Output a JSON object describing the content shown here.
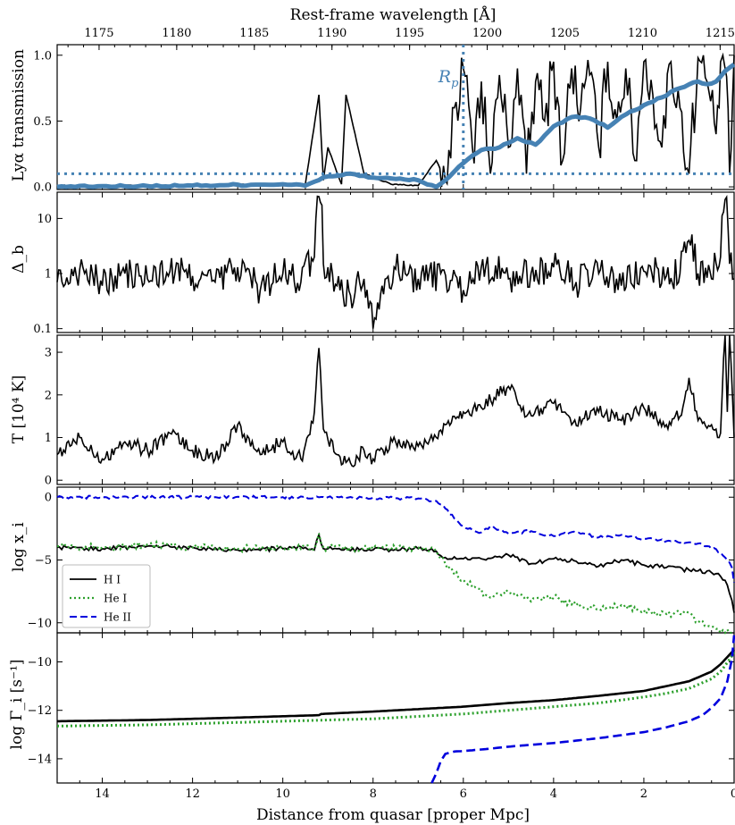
{
  "chart_data": [
    {
      "type": "line",
      "panel": "transmission",
      "xlabel_top": "Rest-frame wavelength [Å]",
      "ylabel": "Lyα transmission",
      "ylim": [
        -0.02,
        1.08
      ],
      "yticks": [
        "0.0",
        "0.5",
        "1.0"
      ],
      "top_ticks": [
        "1175",
        "1180",
        "1185",
        "1190",
        "1195",
        "1200",
        "1205",
        "1210",
        "1215"
      ],
      "annotation": "R_p",
      "annotation_x": 6.0,
      "threshold_y": 0.1,
      "colors": {
        "raw": "#000000",
        "smoothed": "#4682b4",
        "guide": "#4682b4"
      },
      "series": [
        {
          "role": "raw",
          "x": [
            15,
            13,
            12,
            11,
            10,
            9.5,
            9.2,
            9.1,
            9.0,
            8.7,
            8.6,
            8.2,
            7.6,
            7.0,
            6.6,
            6.4,
            6.2,
            6.0,
            5.8,
            5.6,
            5.4,
            5.2,
            5.0,
            4.8,
            4.6,
            4.4,
            4.2,
            4.0,
            3.8,
            3.6,
            3.4,
            3.2,
            3.0,
            2.8,
            2.6,
            2.4,
            2.2,
            2.0,
            1.8,
            1.6,
            1.4,
            1.2,
            1.0,
            0.8,
            0.6,
            0.4,
            0.3,
            0.2,
            0.1,
            0.0
          ],
          "values": [
            0.01,
            0.01,
            0.01,
            0.02,
            0.02,
            0.02,
            0.7,
            0.05,
            0.3,
            0.02,
            0.7,
            0.1,
            0.02,
            0.01,
            0.2,
            0.05,
            0.6,
            0.9,
            0.3,
            0.8,
            0.1,
            0.85,
            0.3,
            0.9,
            0.1,
            0.8,
            0.5,
            0.95,
            0.2,
            0.9,
            0.6,
            0.85,
            0.3,
            0.95,
            0.5,
            0.9,
            0.2,
            0.95,
            0.7,
            0.3,
            0.95,
            0.6,
            0.1,
            0.98,
            0.8,
            0.4,
            0.95,
            0.9,
            0.1,
            1.0
          ]
        },
        {
          "role": "smoothed",
          "x": [
            15,
            12,
            10,
            9.5,
            9.0,
            8.5,
            8.0,
            7.5,
            7.0,
            6.6,
            6.3,
            6.0,
            5.6,
            5.2,
            4.8,
            4.4,
            4.0,
            3.6,
            3.2,
            2.8,
            2.4,
            2.0,
            1.6,
            1.2,
            0.8,
            0.6,
            0.4,
            0.2,
            0.0
          ],
          "values": [
            0.0,
            0.01,
            0.02,
            0.01,
            0.08,
            0.1,
            0.07,
            0.06,
            0.05,
            0.0,
            0.08,
            0.18,
            0.28,
            0.3,
            0.37,
            0.32,
            0.46,
            0.53,
            0.52,
            0.45,
            0.55,
            0.62,
            0.68,
            0.75,
            0.8,
            0.78,
            0.8,
            0.88,
            0.93
          ]
        }
      ]
    },
    {
      "type": "line",
      "panel": "overdensity",
      "ylabel": "Δ_b",
      "scale": "log",
      "ylim": [
        0.085,
        30
      ],
      "yticks": [
        "0.1",
        "1",
        "10"
      ],
      "series": [
        {
          "x": [
            15,
            14.5,
            14,
            13.5,
            13,
            12.5,
            12,
            11.5,
            11,
            10.5,
            10,
            9.6,
            9.3,
            9.2,
            9.1,
            8.8,
            8.5,
            8.2,
            8.0,
            7.8,
            7.5,
            7.0,
            6.5,
            6.0,
            5.5,
            5.0,
            4.5,
            4.0,
            3.5,
            3.0,
            2.5,
            2.0,
            1.5,
            1.2,
            1.0,
            0.8,
            0.5,
            0.3,
            0.2,
            0.1,
            0.0
          ],
          "values": [
            0.7,
            1.2,
            0.6,
            1.0,
            0.8,
            1.1,
            0.9,
            0.7,
            1.3,
            0.5,
            1.0,
            0.7,
            2.0,
            25,
            1.5,
            0.6,
            0.4,
            0.8,
            0.1,
            0.6,
            1.2,
            0.8,
            1.0,
            0.5,
            1.4,
            0.8,
            1.0,
            1.3,
            0.7,
            1.0,
            0.6,
            1.1,
            0.9,
            1.0,
            4.0,
            1.0,
            0.8,
            2.0,
            22,
            1.5,
            0.8
          ]
        }
      ]
    },
    {
      "type": "line",
      "panel": "temperature",
      "ylabel": "T [10⁴ K]",
      "ylim": [
        -0.1,
        3.4
      ],
      "yticks": [
        "0",
        "1",
        "2",
        "3"
      ],
      "series": [
        {
          "x": [
            15,
            14.5,
            14,
            13.5,
            13,
            12.5,
            12,
            11.5,
            11,
            10.5,
            10,
            9.6,
            9.3,
            9.2,
            9.1,
            8.8,
            8.5,
            8.2,
            8.0,
            7.5,
            7.0,
            6.6,
            6.4,
            6.2,
            6.0,
            5.6,
            5.0,
            4.6,
            4.0,
            3.6,
            3.0,
            2.5,
            2.0,
            1.5,
            1.2,
            1.0,
            0.8,
            0.5,
            0.3,
            0.2,
            0.15,
            0.1,
            0.0
          ],
          "values": [
            0.6,
            1.0,
            0.5,
            0.9,
            0.7,
            1.1,
            0.7,
            0.5,
            1.3,
            0.6,
            0.9,
            0.5,
            1.6,
            3.1,
            1.2,
            0.6,
            0.4,
            0.7,
            0.5,
            0.9,
            0.8,
            1.0,
            1.3,
            1.5,
            1.6,
            1.7,
            2.2,
            1.5,
            1.8,
            1.3,
            1.6,
            1.4,
            1.7,
            1.3,
            1.5,
            2.4,
            1.4,
            1.3,
            1.1,
            3.5,
            1.6,
            3.5,
            1.0
          ]
        }
      ]
    },
    {
      "type": "line",
      "panel": "ionization_fraction",
      "ylabel": "log x_i",
      "ylim": [
        -10.8,
        0.8
      ],
      "yticks": [
        "0",
        "-5",
        "-10"
      ],
      "legend": "left",
      "colors": {
        "H I": "#000000",
        "He I": "#2ca02c",
        "He II": "#0000dd"
      },
      "legend_labels": [
        "H I",
        "He I",
        "He II"
      ],
      "series": [
        {
          "name": "H I",
          "x": [
            15,
            14,
            13,
            12,
            11,
            10,
            9.5,
            9.3,
            9.2,
            9.1,
            9.0,
            8,
            7,
            6.6,
            6.4,
            6.0,
            5.5,
            5.0,
            4.5,
            4.0,
            3.5,
            3.0,
            2.5,
            2.0,
            1.5,
            1.0,
            0.5,
            0.3,
            0.15,
            0.05,
            0.0
          ],
          "values": [
            -4.0,
            -4.1,
            -3.9,
            -4.0,
            -4.2,
            -4.1,
            -4.0,
            -4.2,
            -3.0,
            -4.1,
            -4.1,
            -4.2,
            -4.1,
            -4.3,
            -4.8,
            -4.9,
            -5.0,
            -4.6,
            -5.3,
            -4.9,
            -5.1,
            -5.5,
            -5.0,
            -5.4,
            -5.6,
            -5.8,
            -6.0,
            -6.3,
            -7.0,
            -8.2,
            -9.2
          ]
        },
        {
          "name": "He I",
          "x": [
            15,
            14,
            13,
            12,
            11,
            10,
            9.5,
            9.3,
            9.2,
            9.1,
            9.0,
            8,
            7,
            6.6,
            6.4,
            6.0,
            5.5,
            5.0,
            4.5,
            4.0,
            3.5,
            3.0,
            2.5,
            2.0,
            1.5,
            1.0,
            0.8,
            0.5,
            0.3,
            0.2,
            0.1,
            0.0
          ],
          "values": [
            -3.9,
            -4.0,
            -3.8,
            -4.0,
            -4.1,
            -4.0,
            -3.9,
            -4.1,
            -2.9,
            -4.0,
            -4.0,
            -4.1,
            -4.0,
            -4.3,
            -5.3,
            -6.6,
            -7.8,
            -7.6,
            -8.3,
            -8.0,
            -8.6,
            -8.9,
            -8.6,
            -9.0,
            -9.3,
            -9.2,
            -10.0,
            -10.3,
            -10.8,
            -10.8,
            -10.8,
            -10.8
          ]
        },
        {
          "name": "He II",
          "x": [
            15,
            12,
            10,
            8,
            7,
            6.6,
            6.4,
            6.2,
            6.0,
            5.8,
            5.6,
            5.4,
            5.0,
            4.5,
            4.0,
            3.5,
            3.0,
            2.5,
            2.0,
            1.5,
            1.0,
            0.6,
            0.3,
            0.15,
            0.05,
            0.0
          ],
          "values": [
            0.0,
            0.0,
            0.0,
            -0.05,
            -0.1,
            -0.3,
            -0.9,
            -1.7,
            -2.3,
            -2.6,
            -2.8,
            -2.3,
            -2.9,
            -2.7,
            -3.1,
            -2.8,
            -3.2,
            -3.0,
            -3.3,
            -3.5,
            -3.6,
            -3.9,
            -4.4,
            -5.0,
            -5.6,
            -6.8
          ]
        }
      ]
    },
    {
      "type": "line",
      "panel": "photoionization_rate",
      "ylabel": "log Γ_i [s⁻¹]",
      "xlabel": "Distance from quasar [proper Mpc]",
      "ylim": [
        -15,
        -8.8
      ],
      "yticks": [
        "-10",
        "-12",
        "-14"
      ],
      "xlim": [
        15,
        0
      ],
      "xticks": [
        "14",
        "12",
        "10",
        "8",
        "6",
        "4",
        "2",
        "0"
      ],
      "colors": {
        "H I": "#000000",
        "He I": "#2ca02c",
        "He II": "#0000dd"
      },
      "series": [
        {
          "name": "H I",
          "x": [
            15,
            13,
            11,
            9.2,
            9.15,
            8,
            7,
            6,
            5,
            4,
            3,
            2,
            1.5,
            1.0,
            0.5,
            0.3,
            0.1,
            0.0
          ],
          "values": [
            -12.45,
            -12.4,
            -12.3,
            -12.2,
            -12.15,
            -12.05,
            -11.95,
            -11.85,
            -11.7,
            -11.58,
            -11.4,
            -11.2,
            -11.0,
            -10.8,
            -10.4,
            -10.1,
            -9.7,
            -9.5
          ]
        },
        {
          "name": "He I",
          "x": [
            15,
            13,
            11,
            9,
            8,
            7,
            6,
            5,
            4,
            3,
            2,
            1.5,
            1.0,
            0.5,
            0.3,
            0.1,
            0.0
          ],
          "values": [
            -12.65,
            -12.6,
            -12.5,
            -12.4,
            -12.35,
            -12.25,
            -12.15,
            -12.0,
            -11.85,
            -11.7,
            -11.45,
            -11.3,
            -11.1,
            -10.7,
            -10.4,
            -9.9,
            -9.6
          ]
        },
        {
          "name": "He II",
          "x": [
            6.7,
            6.6,
            6.5,
            6.4,
            6.2,
            6.0,
            5.5,
            5.0,
            4.0,
            3.0,
            2.0,
            1.5,
            1.0,
            0.7,
            0.5,
            0.3,
            0.15,
            0.05,
            0.0
          ],
          "values": [
            -15.0,
            -14.6,
            -14.1,
            -13.8,
            -13.7,
            -13.68,
            -13.6,
            -13.5,
            -13.35,
            -13.15,
            -12.9,
            -12.7,
            -12.45,
            -12.2,
            -11.9,
            -11.5,
            -10.8,
            -9.9,
            -8.9
          ]
        }
      ]
    }
  ]
}
